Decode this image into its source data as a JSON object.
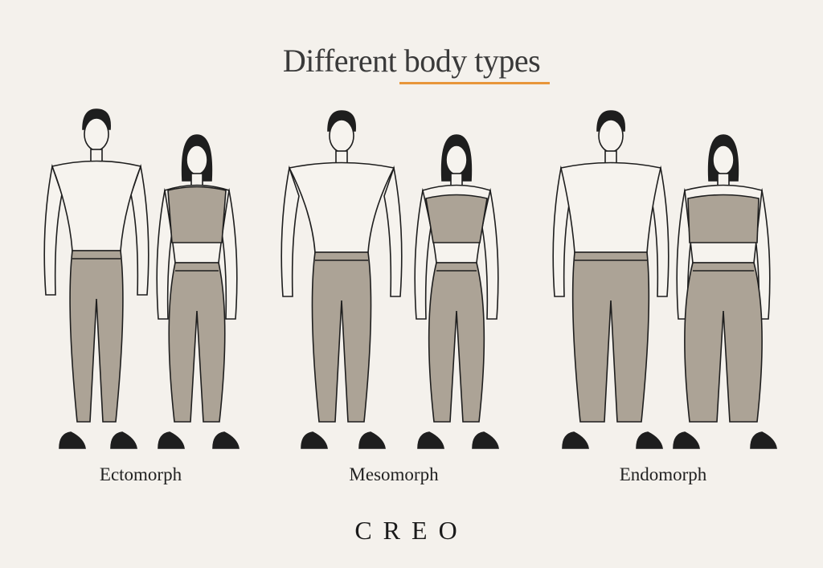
{
  "title": "Different body types",
  "colors": {
    "background": "#f4f1ec",
    "accent": "#e8963a",
    "pants": "#aca396",
    "skin": "#f6f3ee",
    "outline": "#1e1e1e",
    "hair": "#1e1e1e"
  },
  "groups": [
    {
      "label": "Ectomorph",
      "figures": [
        "man",
        "woman"
      ]
    },
    {
      "label": "Mesomorph",
      "figures": [
        "man",
        "woman"
      ]
    },
    {
      "label": "Endomorph",
      "figures": [
        "man",
        "woman"
      ]
    }
  ],
  "logo": "CREO"
}
